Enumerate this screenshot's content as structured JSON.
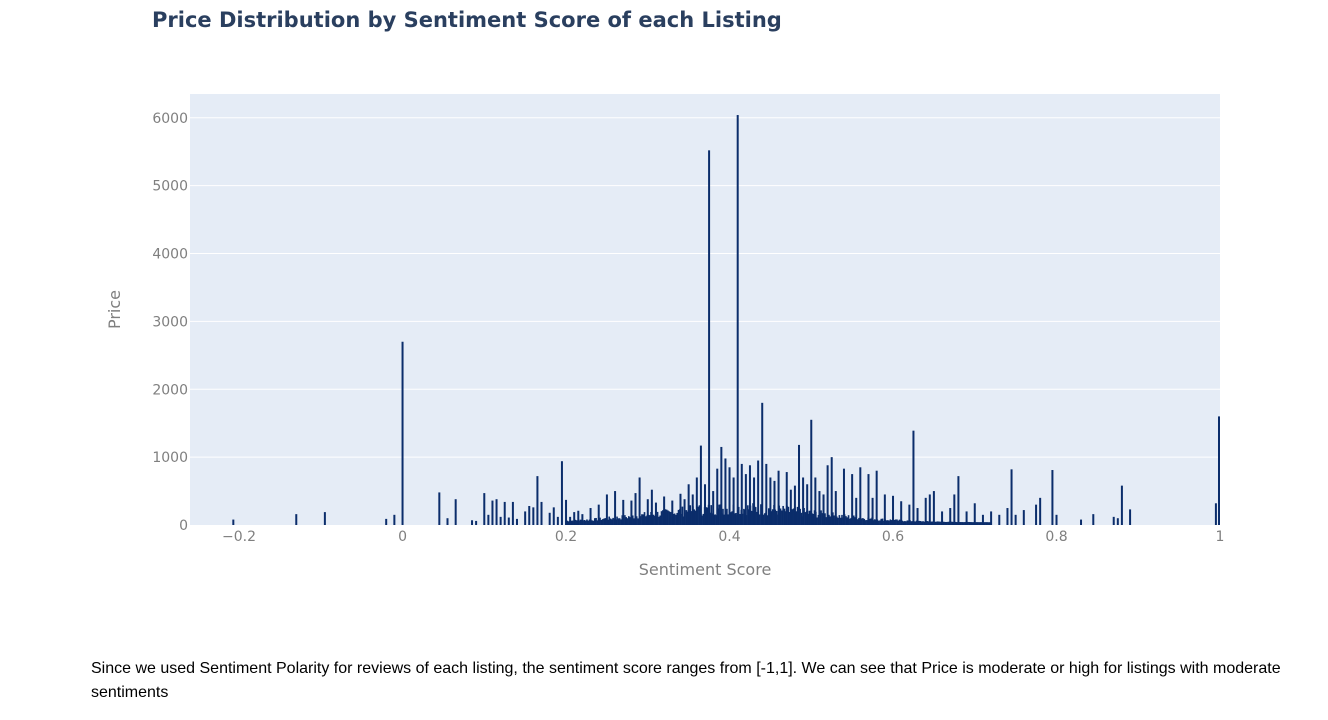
{
  "caption": "Since we used Sentiment Polarity for reviews of each listing, the sentiment score ranges from [-1,1]. We can see that Price is moderate or high for listings with moderate sentiments",
  "chart_data": {
    "type": "bar",
    "title": "Price Distribution by Sentiment Score of each Listing",
    "xlabel": "Sentiment Score",
    "ylabel": "Price",
    "xlim": [
      -0.26,
      1.0
    ],
    "ylim": [
      0,
      6350
    ],
    "xticks": [
      -0.2,
      0,
      0.2,
      0.4,
      0.6,
      0.8,
      1
    ],
    "xtick_labels": [
      "−0.2",
      "0",
      "0.2",
      "0.4",
      "0.6",
      "0.8",
      "1"
    ],
    "yticks": [
      0,
      1000,
      2000,
      3000,
      4000,
      5000,
      6000
    ],
    "ytick_labels": [
      "0",
      "1000",
      "2000",
      "3000",
      "4000",
      "5000",
      "6000"
    ],
    "grid": true,
    "colors": {
      "bar": "#0b2d6b",
      "plot_bg": "#e5ecf6",
      "grid": "#ffffff"
    },
    "points": [
      [
        -0.207,
        80
      ],
      [
        -0.13,
        160
      ],
      [
        -0.095,
        190
      ],
      [
        -0.02,
        90
      ],
      [
        -0.01,
        150
      ],
      [
        0.0,
        2700
      ],
      [
        0.045,
        480
      ],
      [
        0.055,
        100
      ],
      [
        0.065,
        380
      ],
      [
        0.085,
        70
      ],
      [
        0.09,
        60
      ],
      [
        0.1,
        470
      ],
      [
        0.105,
        150
      ],
      [
        0.11,
        360
      ],
      [
        0.115,
        380
      ],
      [
        0.12,
        120
      ],
      [
        0.125,
        340
      ],
      [
        0.13,
        110
      ],
      [
        0.135,
        340
      ],
      [
        0.14,
        90
      ],
      [
        0.15,
        200
      ],
      [
        0.155,
        280
      ],
      [
        0.16,
        260
      ],
      [
        0.165,
        720
      ],
      [
        0.17,
        340
      ],
      [
        0.18,
        180
      ],
      [
        0.185,
        260
      ],
      [
        0.19,
        120
      ],
      [
        0.195,
        940
      ],
      [
        0.2,
        370
      ],
      [
        0.205,
        120
      ],
      [
        0.21,
        190
      ],
      [
        0.215,
        210
      ],
      [
        0.22,
        160
      ],
      [
        0.23,
        250
      ],
      [
        0.24,
        300
      ],
      [
        0.25,
        450
      ],
      [
        0.26,
        500
      ],
      [
        0.27,
        370
      ],
      [
        0.28,
        360
      ],
      [
        0.285,
        470
      ],
      [
        0.29,
        700
      ],
      [
        0.3,
        380
      ],
      [
        0.305,
        520
      ],
      [
        0.31,
        330
      ],
      [
        0.32,
        420
      ],
      [
        0.33,
        360
      ],
      [
        0.34,
        460
      ],
      [
        0.345,
        380
      ],
      [
        0.35,
        600
      ],
      [
        0.355,
        450
      ],
      [
        0.36,
        700
      ],
      [
        0.365,
        1170
      ],
      [
        0.37,
        600
      ],
      [
        0.375,
        5520
      ],
      [
        0.38,
        500
      ],
      [
        0.385,
        830
      ],
      [
        0.39,
        1150
      ],
      [
        0.395,
        980
      ],
      [
        0.4,
        850
      ],
      [
        0.405,
        700
      ],
      [
        0.41,
        6040
      ],
      [
        0.415,
        900
      ],
      [
        0.42,
        750
      ],
      [
        0.425,
        880
      ],
      [
        0.43,
        700
      ],
      [
        0.435,
        950
      ],
      [
        0.44,
        1800
      ],
      [
        0.445,
        900
      ],
      [
        0.45,
        700
      ],
      [
        0.455,
        650
      ],
      [
        0.46,
        800
      ],
      [
        0.47,
        780
      ],
      [
        0.475,
        520
      ],
      [
        0.48,
        580
      ],
      [
        0.485,
        1180
      ],
      [
        0.49,
        700
      ],
      [
        0.495,
        600
      ],
      [
        0.5,
        1550
      ],
      [
        0.505,
        700
      ],
      [
        0.51,
        500
      ],
      [
        0.515,
        450
      ],
      [
        0.52,
        880
      ],
      [
        0.525,
        1000
      ],
      [
        0.53,
        500
      ],
      [
        0.54,
        830
      ],
      [
        0.55,
        750
      ],
      [
        0.555,
        400
      ],
      [
        0.56,
        850
      ],
      [
        0.57,
        750
      ],
      [
        0.575,
        400
      ],
      [
        0.58,
        800
      ],
      [
        0.59,
        450
      ],
      [
        0.6,
        430
      ],
      [
        0.61,
        350
      ],
      [
        0.62,
        300
      ],
      [
        0.625,
        1390
      ],
      [
        0.63,
        250
      ],
      [
        0.64,
        400
      ],
      [
        0.645,
        450
      ],
      [
        0.65,
        500
      ],
      [
        0.66,
        200
      ],
      [
        0.67,
        250
      ],
      [
        0.675,
        450
      ],
      [
        0.68,
        720
      ],
      [
        0.69,
        200
      ],
      [
        0.7,
        320
      ],
      [
        0.71,
        150
      ],
      [
        0.72,
        200
      ],
      [
        0.73,
        150
      ],
      [
        0.74,
        250
      ],
      [
        0.745,
        820
      ],
      [
        0.75,
        150
      ],
      [
        0.76,
        220
      ],
      [
        0.775,
        300
      ],
      [
        0.78,
        400
      ],
      [
        0.795,
        810
      ],
      [
        0.8,
        150
      ],
      [
        0.83,
        80
      ],
      [
        0.845,
        160
      ],
      [
        0.87,
        120
      ],
      [
        0.875,
        100
      ],
      [
        0.88,
        580
      ],
      [
        0.89,
        230
      ],
      [
        0.995,
        320
      ],
      [
        1.0,
        1600
      ]
    ]
  }
}
